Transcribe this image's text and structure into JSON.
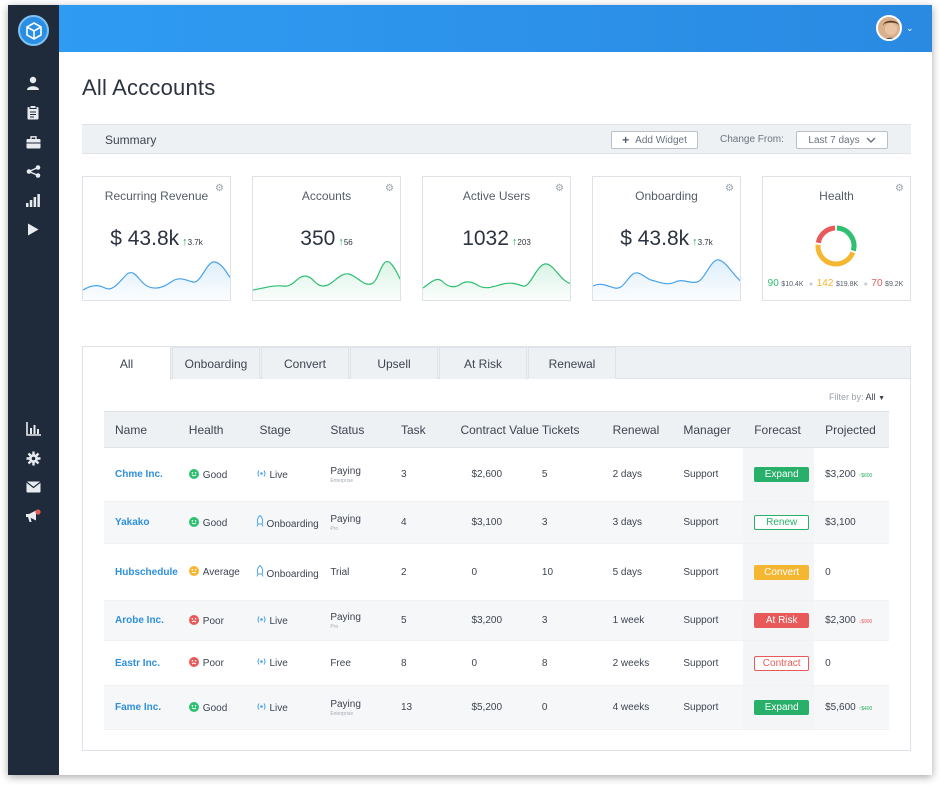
{
  "page_title": "All Acccounts",
  "summary": {
    "label": "Summary",
    "add_widget": "Add Widget",
    "change_from": "Change From:",
    "range": "Last 7 days"
  },
  "cards": [
    {
      "title": "Recurring Revenue",
      "value": "$ 43.8k",
      "delta": "3.7k",
      "spark_color": "#4aa3ea"
    },
    {
      "title": "Accounts",
      "value": "350",
      "delta": "56",
      "spark_color": "#2fbf71"
    },
    {
      "title": "Active Users",
      "value": "1032",
      "delta": "203",
      "spark_color": "#2fbf71"
    },
    {
      "title": "Onboarding",
      "value": "$ 43.8k",
      "delta": "3.7k",
      "spark_color": "#4aa3ea"
    }
  ],
  "health_card": {
    "title": "Health",
    "segments": [
      {
        "count": "90",
        "amount": "$10.4K",
        "color": "#2fbf71",
        "share": 0.3
      },
      {
        "count": "142",
        "amount": "$19.8K",
        "color": "#f5b731",
        "share": 0.47
      },
      {
        "count": "70",
        "amount": "$9.2K",
        "color": "#e85a5a",
        "share": 0.23
      }
    ]
  },
  "tabs": [
    "All",
    "Onboarding",
    "Convert",
    "Upsell",
    "At Risk",
    "Renewal"
  ],
  "filter": {
    "label": "Filter by:",
    "value": "All"
  },
  "table": {
    "headers": [
      "Name",
      "Health",
      "Stage",
      "Status",
      "Task",
      "Contract Value",
      "Tickets",
      "Renewal",
      "Manager",
      "Forecast",
      "Projected"
    ],
    "rows": [
      {
        "name": "Chme Inc.",
        "health": "Good",
        "health_type": "good",
        "stage": "Live",
        "stage_icon": "broadcast-icon",
        "status": "Paying",
        "plan": "Enterprise",
        "task": "3",
        "contract": "$2,600",
        "tickets": "5",
        "renewal": "2 days",
        "manager": "Support",
        "forecast": "Expand",
        "forecast_type": "expand",
        "projected": "$3,200",
        "proj_delta": "$600",
        "proj_dir": "up"
      },
      {
        "name": "Yakako",
        "health": "Good",
        "health_type": "good",
        "stage": "Onboarding",
        "stage_icon": "rocket-icon",
        "status": "Paying",
        "plan": "Pro",
        "task": "4",
        "contract": "$3,100",
        "tickets": "3",
        "renewal": "3 days",
        "manager": "Support",
        "forecast": "Renew",
        "forecast_type": "renew",
        "projected": "$3,100",
        "proj_delta": "",
        "proj_dir": ""
      },
      {
        "name": "Hubschedule",
        "health": "Average",
        "health_type": "avg",
        "stage": "Onboarding",
        "stage_icon": "rocket-icon",
        "status": "Trial",
        "plan": "",
        "task": "2",
        "contract": "0",
        "tickets": "10",
        "renewal": "5 days",
        "manager": "Support",
        "forecast": "Convert",
        "forecast_type": "convert",
        "projected": "0",
        "proj_delta": "",
        "proj_dir": ""
      },
      {
        "name": "Arobe Inc.",
        "health": "Poor",
        "health_type": "poor",
        "stage": "Live",
        "stage_icon": "broadcast-icon",
        "status": "Paying",
        "plan": "Pro",
        "task": "5",
        "contract": "$3,200",
        "tickets": "3",
        "renewal": "1 week",
        "manager": "Support",
        "forecast": "At Risk",
        "forecast_type": "risk",
        "projected": "$2,300",
        "proj_delta": "$900",
        "proj_dir": "down"
      },
      {
        "name": "Eastr Inc.",
        "health": "Poor",
        "health_type": "poor",
        "stage": "Live",
        "stage_icon": "broadcast-icon",
        "status": "Free",
        "plan": "",
        "task": "8",
        "contract": "0",
        "tickets": "8",
        "renewal": "2 weeks",
        "manager": "Support",
        "forecast": "Contract",
        "forecast_type": "contract",
        "projected": "0",
        "proj_delta": "",
        "proj_dir": ""
      },
      {
        "name": "Fame Inc.",
        "health": "Good",
        "health_type": "good",
        "stage": "Live",
        "stage_icon": "broadcast-icon",
        "status": "Paying",
        "plan": "Enterprise",
        "task": "13",
        "contract": "$5,200",
        "tickets": "0",
        "renewal": "4 weeks",
        "manager": "Support",
        "forecast": "Expand",
        "forecast_type": "expand",
        "projected": "$5,600",
        "proj_delta": "$400",
        "proj_dir": "up"
      }
    ]
  },
  "sidebar_icons": [
    "user-icon",
    "clipboard-icon",
    "briefcase-icon",
    "share-icon",
    "signal-icon",
    "play-icon",
    "bar-chart-icon",
    "gear-icon",
    "mail-icon",
    "megaphone-icon"
  ]
}
